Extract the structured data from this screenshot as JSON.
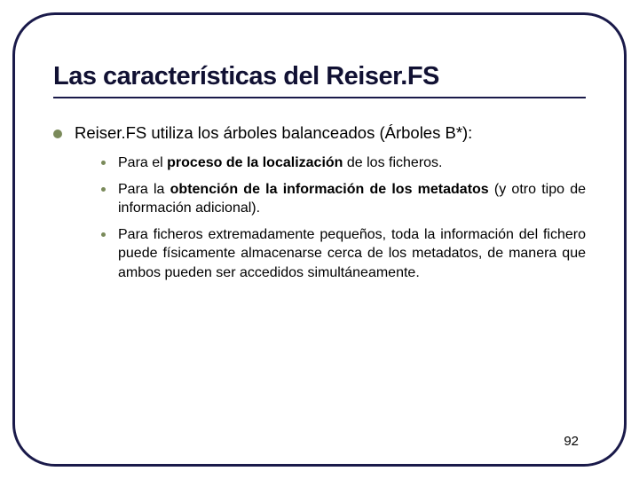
{
  "slide": {
    "title": "Las características del Reiser.FS",
    "main_bullet": "Reiser.FS utiliza los árboles balanceados (Árboles B*):",
    "sub_bullets": [
      "Para el <b>proceso de la localización</b> de los ficheros.",
      "Para la <b>obtención de la información de los metadatos</b> (y otro tipo de información adicional).",
      "Para ficheros extremadamente pequeños, toda la información del fichero puede físicamente almacenarse cerca de los metadatos, de manera que ambos pueden ser accedidos simultáneamente."
    ],
    "page_number": "92"
  },
  "styling": {
    "frame_border_color": "#1a1a4a",
    "frame_border_width": 3,
    "frame_border_radius": 48,
    "title_color": "#111133",
    "title_fontsize": 29,
    "title_underline_color": "#1a1a4a",
    "bullet_color": "#7a8a5a",
    "main_bullet_diameter": 10,
    "sub_bullet_diameter": 5,
    "main_text_fontsize": 18.5,
    "sub_text_fontsize": 16,
    "background_color": "#ffffff",
    "text_color": "#000000",
    "page_number_fontsize": 15
  }
}
